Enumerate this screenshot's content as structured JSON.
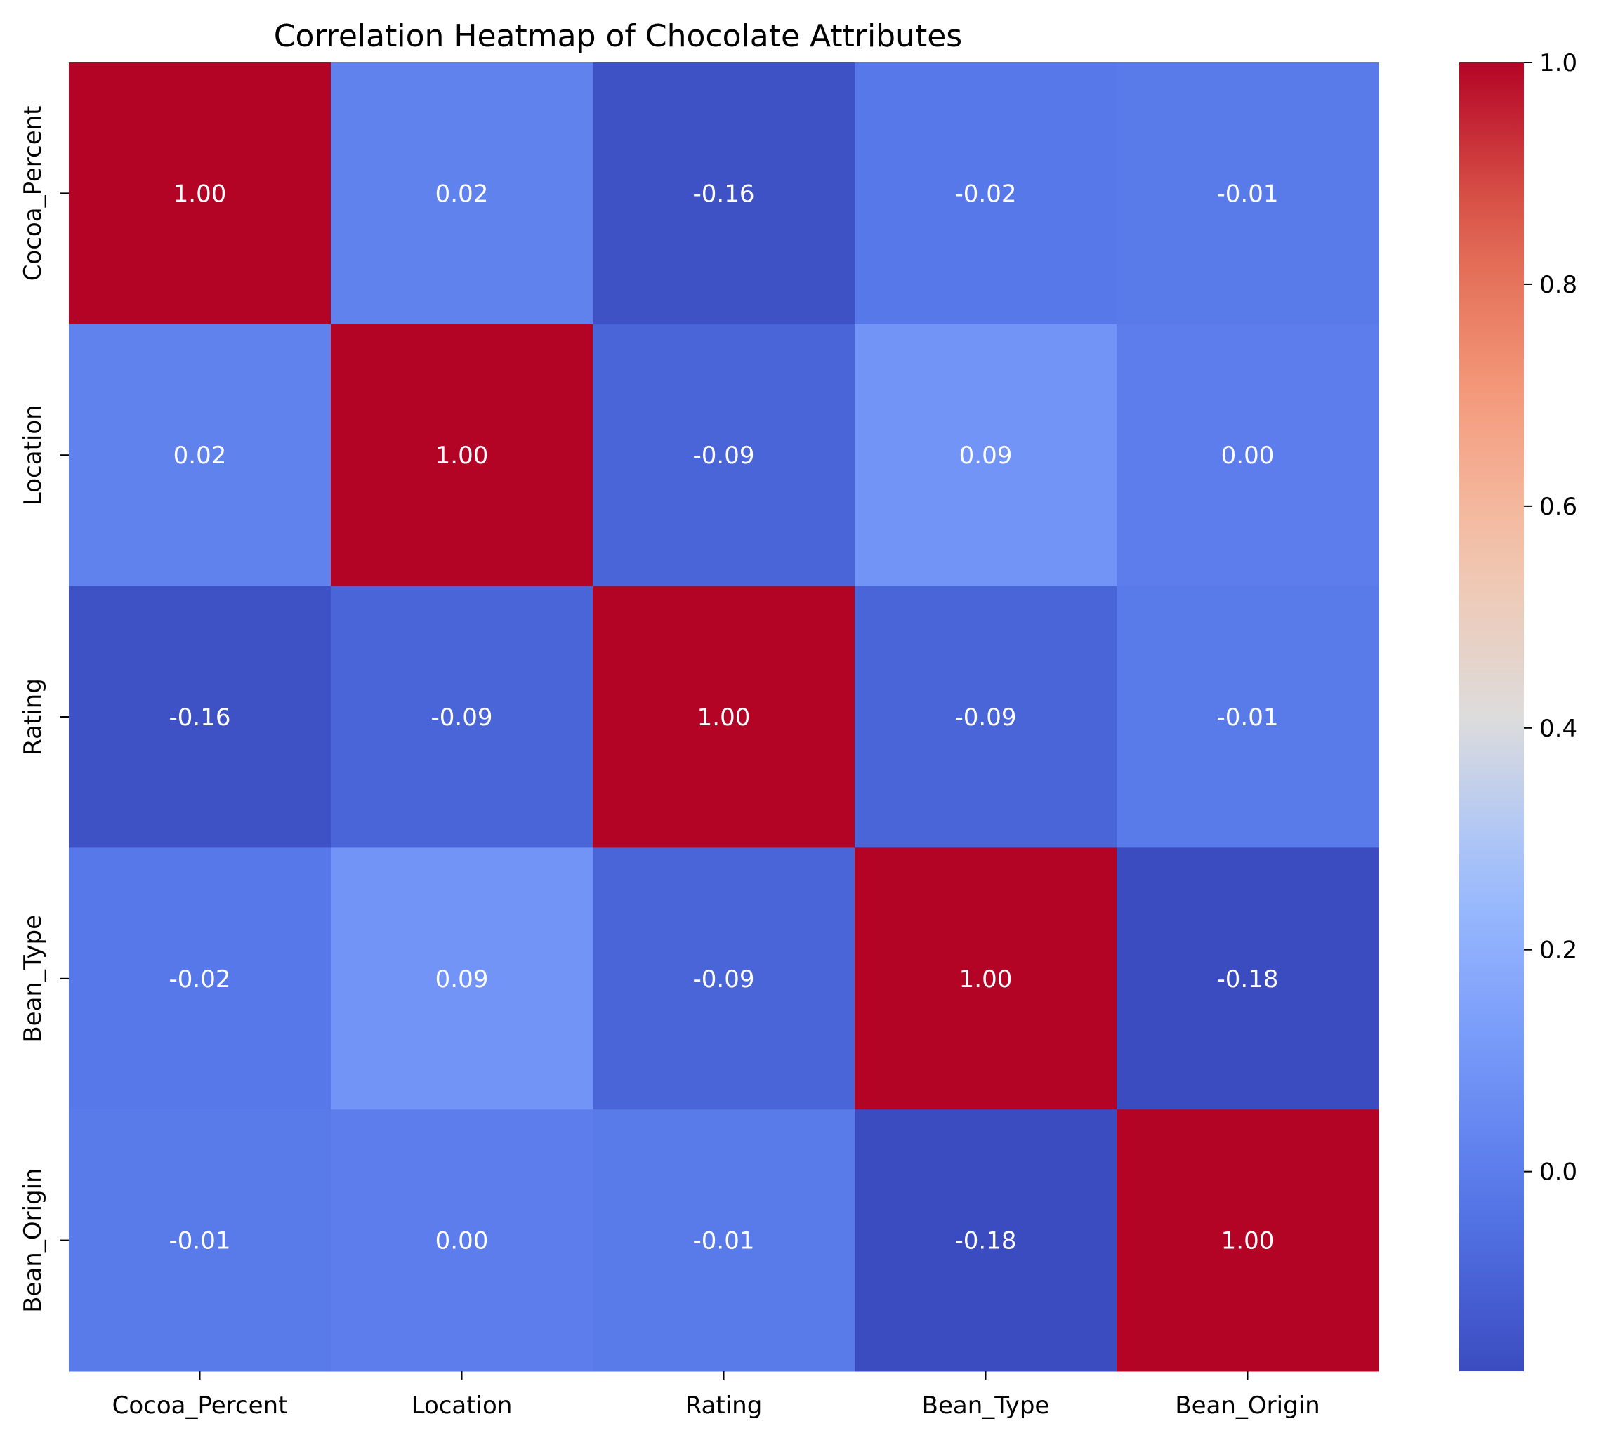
{
  "chart_data": {
    "type": "heatmap",
    "title": "Correlation Heatmap of Chocolate Attributes",
    "rows": [
      "Cocoa_Percent",
      "Location",
      "Rating",
      "Bean_Type",
      "Bean_Origin"
    ],
    "columns": [
      "Cocoa_Percent",
      "Location",
      "Rating",
      "Bean_Type",
      "Bean_Origin"
    ],
    "values": [
      [
        1.0,
        0.02,
        -0.16,
        -0.02,
        -0.01
      ],
      [
        0.02,
        1.0,
        -0.09,
        0.09,
        0.0
      ],
      [
        -0.16,
        -0.09,
        1.0,
        -0.09,
        -0.01
      ],
      [
        -0.02,
        0.09,
        -0.09,
        1.0,
        -0.18
      ],
      [
        -0.01,
        0.0,
        -0.01,
        -0.18,
        1.0
      ]
    ],
    "colormap": "coolwarm",
    "color_range": [
      -0.18,
      1.0
    ],
    "colorbar": {
      "ticks": [
        0.0,
        0.2,
        0.4,
        0.6,
        0.8,
        1.0
      ],
      "tick_labels": [
        "0.0",
        "0.2",
        "0.4",
        "0.6",
        "0.8",
        "1.0"
      ],
      "placement": "right"
    },
    "annotations": true,
    "xlabel": "",
    "ylabel": ""
  }
}
